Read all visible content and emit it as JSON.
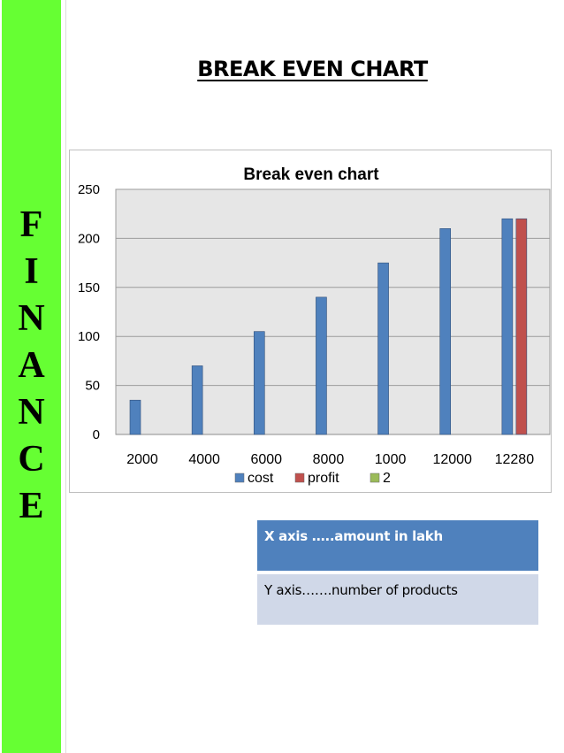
{
  "side_band": {
    "color": "#66ff33",
    "letters": [
      "F",
      "I",
      "N",
      "A",
      "N",
      "C",
      "E"
    ]
  },
  "heading": "BREAK EVEN CHART",
  "chart_data": {
    "type": "bar",
    "title": "Break even chart",
    "categories": [
      "2000",
      "4000",
      "6000",
      "8000",
      "1000",
      "12000",
      "12280"
    ],
    "series": [
      {
        "name": "cost",
        "color": "#4f81bd",
        "values": [
          35,
          70,
          105,
          140,
          175,
          210,
          220
        ]
      },
      {
        "name": "profit",
        "color": "#c0504d",
        "values": [
          0,
          0,
          0,
          0,
          0,
          0,
          220
        ]
      },
      {
        "name": "2",
        "color": "#9bbb59",
        "values": [
          0,
          0,
          0,
          0,
          0,
          0,
          0
        ]
      }
    ],
    "y_ticks": [
      "0",
      "50",
      "100",
      "150",
      "200",
      "250"
    ],
    "ylim": [
      0,
      250
    ],
    "grid": true,
    "plot_background": "#e6e6e6",
    "legend_position": "bottom"
  },
  "axis_table": {
    "x_note": "X axis …..amount in lakh",
    "y_note": "Y axis…….number of products"
  }
}
